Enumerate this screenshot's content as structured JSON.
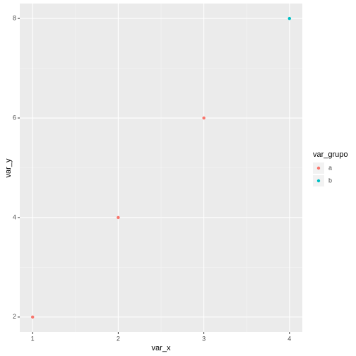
{
  "chart_data": {
    "type": "scatter",
    "x_label": "var_x",
    "y_label": "var_y",
    "legend_title": "var_grupo",
    "legend_position": "right",
    "series": [
      {
        "name": "a",
        "color": "#F8766D",
        "x": [
          1,
          2,
          3
        ],
        "values": [
          2,
          4,
          6
        ]
      },
      {
        "name": "b",
        "color": "#00BFC4",
        "x": [
          4
        ],
        "values": [
          8
        ]
      }
    ],
    "xlim": [
      0.85,
      4.15
    ],
    "ylim": [
      1.7,
      8.3
    ],
    "xticks": [
      1,
      2,
      3,
      4
    ],
    "yticks": [
      2,
      4,
      6,
      8
    ],
    "xminor": [
      1.5,
      2.5,
      3.5
    ],
    "yminor": [
      3,
      5,
      7
    ],
    "grid": true
  }
}
